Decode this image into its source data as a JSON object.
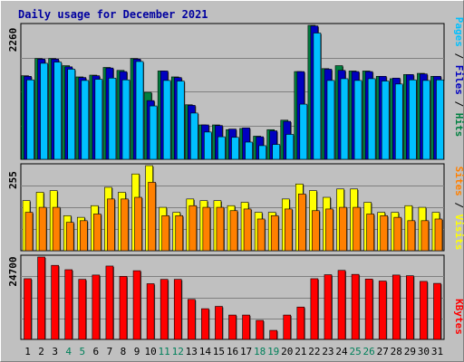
{
  "title": "Daily usage for December 2021",
  "colors": {
    "hits": "#008040",
    "files": "#0000c0",
    "pages": "#00c0ff",
    "visits": "#ffff00",
    "sites": "#ff8000",
    "kbytes": "#ff0000",
    "panel_bg": "#c0c0c0",
    "gridline": "#808080",
    "weekend_label": "#00805a",
    "weekday_label": "#000000"
  },
  "labels": {
    "hits": "Hits",
    "files": "Files",
    "pages": "Pages",
    "visits": "Visits",
    "sites": "Sites",
    "kbytes": "KBytes",
    "sep": " / "
  },
  "chart_data": {
    "type": "bar",
    "title": "Daily usage for December 2021",
    "categories": [
      "1",
      "2",
      "3",
      "4",
      "5",
      "6",
      "7",
      "8",
      "9",
      "10",
      "11",
      "12",
      "13",
      "14",
      "15",
      "16",
      "17",
      "18",
      "19",
      "20",
      "21",
      "22",
      "23",
      "24",
      "25",
      "26",
      "27",
      "28",
      "29",
      "30",
      "31"
    ],
    "weekend_days": [
      4,
      5,
      11,
      12,
      18,
      19,
      25,
      26
    ],
    "panels": [
      {
        "id": "hits",
        "ymax_label": "2260",
        "ymax": 2260,
        "series": [
          {
            "name": "Hits",
            "color": "#008040",
            "values": [
              1410,
              1700,
              1700,
              1580,
              1390,
              1420,
              1550,
              1500,
              1700,
              1130,
              1490,
              1390,
              920,
              580,
              580,
              500,
              520,
              390,
              500,
              660,
              1480,
              2260,
              1530,
              1580,
              1490,
              1490,
              1400,
              1360,
              1430,
              1450,
              1400
            ]
          },
          {
            "name": "Files",
            "color": "#0000c0",
            "values": [
              1400,
              1690,
              1690,
              1560,
              1380,
              1410,
              1540,
              1480,
              1690,
              990,
              1490,
              1380,
              910,
              580,
              570,
              510,
              530,
              380,
              480,
              640,
              1480,
              2250,
              1520,
              1500,
              1480,
              1480,
              1400,
              1370,
              1430,
              1440,
              1400
            ]
          },
          {
            "name": "Pages",
            "color": "#00c0ff",
            "values": [
              1340,
              1620,
              1640,
              1520,
              1330,
              1350,
              1370,
              1340,
              1650,
              900,
              1330,
              1320,
              780,
              460,
              380,
              370,
              290,
              230,
              250,
              420,
              930,
              2130,
              1330,
              1360,
              1330,
              1360,
              1320,
              1270,
              1340,
              1330,
              1340
            ]
          }
        ]
      },
      {
        "id": "visits",
        "ymax_label": "255",
        "ymax": 255,
        "series": [
          {
            "name": "Visits",
            "color": "#ffff00",
            "values": [
              150,
              175,
              180,
              105,
              100,
              135,
              190,
              175,
              230,
              255,
              130,
              115,
              155,
              150,
              150,
              135,
              145,
              115,
              115,
              155,
              200,
              180,
              160,
              185,
              185,
              145,
              115,
              115,
              135,
              130,
              115
            ]
          },
          {
            "name": "Sites",
            "color": "#ff8000",
            "values": [
              115,
              130,
              130,
              85,
              90,
              110,
              155,
              155,
              160,
              205,
              105,
              105,
              135,
              130,
              130,
              120,
              125,
              95,
              105,
              125,
              170,
              120,
              125,
              130,
              130,
              110,
              105,
              100,
              90,
              90,
              95
            ]
          }
        ]
      },
      {
        "id": "kbytes",
        "ymax_label": "24700",
        "ymax": 24700,
        "series": [
          {
            "name": "KBytes",
            "color": "#ff0000",
            "values": [
              18200,
              24700,
              22200,
              20900,
              18000,
              19300,
              22000,
              18900,
              20600,
              16700,
              18000,
              18000,
              12000,
              9200,
              9900,
              7300,
              7300,
              5700,
              2700,
              7300,
              9700,
              18200,
              19400,
              20700,
              19500,
              18100,
              17500,
              19300,
              19100,
              17400,
              16800
            ]
          }
        ]
      }
    ]
  }
}
